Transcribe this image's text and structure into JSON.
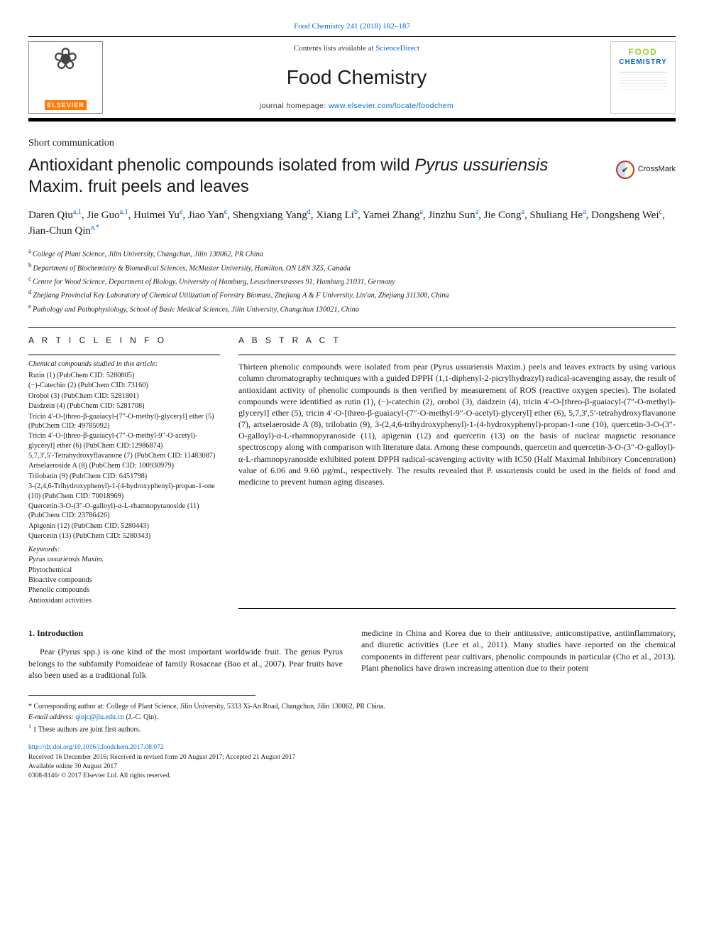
{
  "header": {
    "top_link": "Food Chemistry 241 (2018) 182–187",
    "contents_prefix": "Contents lists available at ",
    "contents_link": "ScienceDirect",
    "journal_name": "Food Chemistry",
    "homepage_prefix": "journal homepage: ",
    "homepage_url": "www.elsevier.com/locate/foodchem",
    "publisher": "ELSEVIER",
    "cover_word1": "FOOD",
    "cover_word2": "CHEMISTRY"
  },
  "crossmark": {
    "label": "CrossMark"
  },
  "article": {
    "type": "Short communication",
    "title_pre": "Antioxidant phenolic compounds isolated from wild ",
    "title_ital": "Pyrus ussuriensis",
    "title_post": " Maxim. fruit peels and leaves"
  },
  "authors": [
    {
      "name": "Daren Qiu",
      "sup": "a,1"
    },
    {
      "name": "Jie Guo",
      "sup": "a,1"
    },
    {
      "name": "Huimei Yu",
      "sup": "e"
    },
    {
      "name": "Jiao Yan",
      "sup": "e"
    },
    {
      "name": "Shengxiang Yang",
      "sup": "d"
    },
    {
      "name": "Xiang Li",
      "sup": "b"
    },
    {
      "name": "Yamei Zhang",
      "sup": "a"
    },
    {
      "name": "Jinzhu Sun",
      "sup": "a"
    },
    {
      "name": "Jie Cong",
      "sup": "a"
    },
    {
      "name": "Shuliang He",
      "sup": "a"
    },
    {
      "name": "Dongsheng Wei",
      "sup": "c"
    },
    {
      "name": "Jian-Chun Qin",
      "sup": "a,*"
    }
  ],
  "affiliations": [
    {
      "tag": "a",
      "text": "College of Plant Science, Jilin University, Changchun, Jilin 130062, PR China"
    },
    {
      "tag": "b",
      "text": "Department of Biochemistry & Biomedical Sciences, McMaster University, Hamilton, ON L8N 3Z5, Canada"
    },
    {
      "tag": "c",
      "text": "Centre for Wood Science, Department of Biology, University of Hamburg, Leuschnerstrasses 91, Hamburg 21031, Germany"
    },
    {
      "tag": "d",
      "text": "Zhejiang Provincial Key Laboratory of Chemical Utilization of Forestry Biomass, Zhejiang A & F University, Lin'an, Zhejiang 311300, China"
    },
    {
      "tag": "e",
      "text": "Pathology and Pathophysiology, School of Basic Medical Sciences, Jilin University, Changchun 130021, China"
    }
  ],
  "info": {
    "heading": "A R T I C L E  I N F O",
    "compounds_label": "Chemical compounds studied in this article:",
    "compounds": [
      "Rutin (1) (PubChem CID: 5280805)",
      "(−)-Catechin (2) (PubChem CID: 73160)",
      "Orobol (3) (PubChem CID: 5281801)",
      "Daidzein (4) (PubChem CID: 5281708)",
      "Tricin 4′-O-[threo-β-guaiacyl-(7″-O-methyl)-glyceryl] ether (5) (PubChem CID: 49785092)",
      "Tricin 4′-O-[threo-β-guaiacyl-(7″-O-methyl-9″-O-acetyl)-glyceryl] ether (6) (PubChem CID:12986874)",
      "5,7,3′,5′-Tetrahydroxyflavanone (7) (PubChem CID: 11483087)",
      "Artselaeroside A (8) (PubChem CID: 100930979)",
      "Trilobatin (9) (PubChem CID: 6451798)",
      "3-(2,4,6-Trihydroxyphenyl)-1-(4-hydroxyphenyl)-propan-1-one (10) (PubChem CID: 70018969)",
      "Quercetin-3-O-(3″-O-galloyl)-α-L-rhamnopyranoside (11) (PubChem CID: 23786426)",
      "Apigenin (12) (PubChem CID: 5280443)",
      "Quercetin (13) (PubChem CID: 5280343)"
    ],
    "keywords_label": "Keywords:",
    "keywords": [
      "Pyrus ussuriensis Maxim.",
      "Phytochemical",
      "Bioactive compounds",
      "Phenolic compounds",
      "Antioxidant activities"
    ]
  },
  "abstract": {
    "heading": "A B S T R A C T",
    "text": "Thirteen phenolic compounds were isolated from pear (Pyrus ussuriensis Maxim.) peels and leaves extracts by using various column chromatography techniques with a guided DPPH (1,1-diphenyl-2-picrylhydrazyl) radical-scavenging assay, the result of antioxidant activity of phenolic compounds is then verified by measurement of ROS (reactive oxygen species). The isolated compounds were identified as rutin (1), (−)-catechin (2), orobol (3), daidzein (4), tricin 4′-O-[threo-β-guaiacyl-(7″-O-methyl)-glyceryl] ether (5), tricin 4′-O-[threo-β-guaiacyl-(7″-O-methyl-9″-O-acetyl)-glyceryl] ether (6), 5,7,3′,5′-tetrahydroxyflavanone (7), artselaeroside A (8), trilobatin (9), 3-(2,4,6-trihydroxyphenyl)-1-(4-hydroxyphenyl)-propan-1-one (10), quercetin-3-O-(3″-O-galloyl)-α-L-rhamnopyranoside (11), apigenin (12) and quercetin (13) on the basis of nuclear magnetic resonance spectroscopy along with comparison with literature data. Among these compounds, quercetin and quercetin-3-O-(3″-O-galloyl)-α-L-rhamnopyranoside exhibited potent DPPH radical-scavenging activity with IC50 (Half Maximal Inhibitory Concentration) value of 6.06 and 9.60 µg/mL, respectively. The results revealed that P. ussuriensis could be used in the fields of food and medicine to prevent human aging diseases."
  },
  "body": {
    "intro_heading": "1. Introduction",
    "left": "Pear (Pyrus spp.) is one kind of the most important worldwide fruit. The genus Pyrus belongs to the subfamily Pomoideae of family Rosaceae (Bao et al., 2007). Pear fruits have also been used as a traditional folk",
    "right": "medicine in China and Korea due to their antitussive, anticonstipative, antiinflammatory, and diuretic activities (Lee et al., 2011). Many studies have reported on the chemical components in different pear cultivars, phenolic compounds in particular (Cho et al., 2013). Plant phenolics have drawn increasing attention due to their potent"
  },
  "footer": {
    "corr": "* Corresponding author at: College of Plant Science, Jilin University, 5333 Xi-An Road, Changchun, Jilin 130062, PR China.",
    "email_label": "E-mail address: ",
    "email": "qinjc@jlu.edu.cn",
    "email_suffix": " (J.-C. Qin).",
    "shared": "1 These authors are joint first authors.",
    "doi": "http://dx.doi.org/10.1016/j.foodchem.2017.08.072",
    "received": "Received 16 December 2016; Received in revised form 20 August 2017; Accepted 21 August 2017",
    "online": "Available online 30 August 2017",
    "copyright": "0308-8146/ © 2017 Elsevier Ltd. All rights reserved."
  }
}
